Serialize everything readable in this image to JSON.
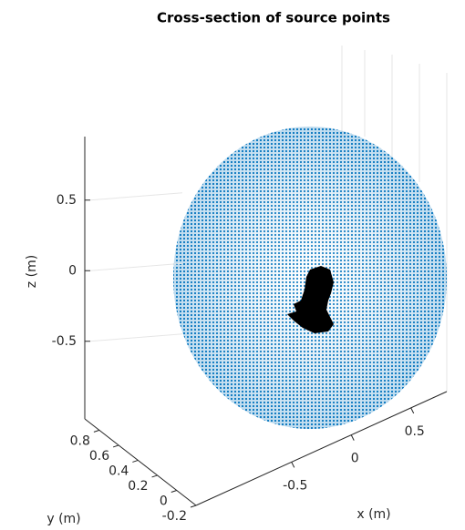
{
  "chart_data": {
    "type": "scatter3d",
    "title": "Cross-section of source points",
    "xlabel": "x (m)",
    "ylabel": "y (m)",
    "zlabel": "z (m)",
    "xlim": [
      -1.3,
      0.8
    ],
    "xticks": [
      -0.5,
      0,
      0.5
    ],
    "ylim": [
      -0.2,
      0.95
    ],
    "yticks": [
      -0.2,
      0,
      0.2,
      0.4,
      0.6,
      0.8
    ],
    "zlim": [
      -1.05,
      0.95
    ],
    "zticks": [
      -0.5,
      0,
      0.5
    ],
    "color": "#0072bd",
    "grid": true
  }
}
